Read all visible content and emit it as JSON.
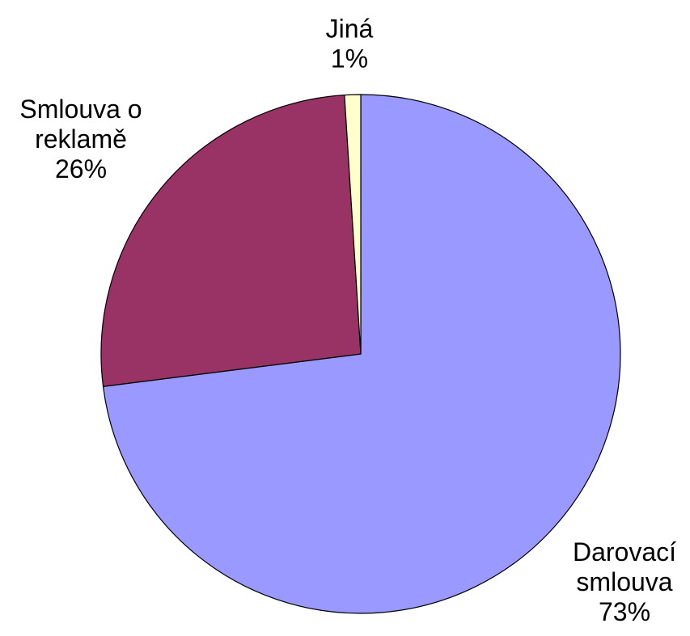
{
  "chart_data": {
    "type": "pie",
    "start_angle_deg": 0,
    "direction": "clockwise",
    "slices": [
      {
        "label": "Darovací smlouva",
        "value": 73,
        "value_label": "73%",
        "color": "#9999ff"
      },
      {
        "label": "Smlouva o reklamě",
        "value": 26,
        "value_label": "26%",
        "color": "#993366"
      },
      {
        "label": "Jiná",
        "value": 1,
        "value_label": "1%",
        "color": "#ffffcc"
      }
    ],
    "label_lines": [
      [
        "Darovací",
        "smlouva",
        "73%"
      ],
      [
        "Smlouva o",
        "reklamě",
        "26%"
      ],
      [
        "Jiná",
        "1%"
      ]
    ]
  }
}
